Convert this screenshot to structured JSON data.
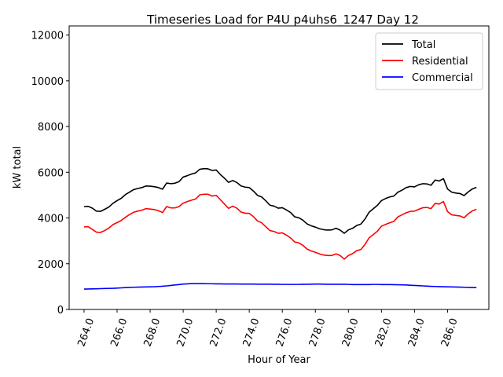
{
  "chart_data": {
    "type": "line",
    "title": "Timeseries Load for P4U p4uhs6_1247  Day 12",
    "xlabel": "Hour of Year",
    "ylabel": "kW total",
    "xlim": [
      263.1,
      288.5
    ],
    "ylim": [
      0,
      12400
    ],
    "x_ticks": [
      264.0,
      266.0,
      268.0,
      270.0,
      272.0,
      274.0,
      276.0,
      278.0,
      280.0,
      282.0,
      284.0,
      286.0
    ],
    "x_tick_labels": [
      "264.0",
      "266.0",
      "268.0",
      "270.0",
      "272.0",
      "274.0",
      "276.0",
      "278.0",
      "280.0",
      "282.0",
      "284.0",
      "286.0"
    ],
    "y_ticks": [
      0,
      2000,
      4000,
      6000,
      8000,
      10000,
      12000
    ],
    "y_tick_labels": [
      "0",
      "2000",
      "4000",
      "6000",
      "8000",
      "10000",
      "12000"
    ],
    "legend_position": "top-right",
    "grid": false,
    "x": [
      264.0,
      264.25,
      264.5,
      264.75,
      265.0,
      265.25,
      265.5,
      265.75,
      266.0,
      266.25,
      266.5,
      266.75,
      267.0,
      267.25,
      267.5,
      267.75,
      268.0,
      268.25,
      268.5,
      268.75,
      269.0,
      269.25,
      269.5,
      269.75,
      270.0,
      270.25,
      270.5,
      270.75,
      271.0,
      271.25,
      271.5,
      271.75,
      272.0,
      272.25,
      272.5,
      272.75,
      273.0,
      273.25,
      273.5,
      273.75,
      274.0,
      274.25,
      274.5,
      274.75,
      275.0,
      275.25,
      275.5,
      275.75,
      276.0,
      276.25,
      276.5,
      276.75,
      277.0,
      277.25,
      277.5,
      277.75,
      278.0,
      278.25,
      278.5,
      278.75,
      279.0,
      279.25,
      279.5,
      279.75,
      280.0,
      280.25,
      280.5,
      280.75,
      281.0,
      281.25,
      281.5,
      281.75,
      282.0,
      282.25,
      282.5,
      282.75,
      283.0,
      283.25,
      283.5,
      283.75,
      284.0,
      284.25,
      284.5,
      284.75,
      285.0,
      285.25,
      285.5,
      285.75,
      286.0,
      286.25,
      286.5,
      286.75,
      287.0,
      287.25,
      287.5,
      287.75
    ],
    "series": [
      {
        "name": "Total",
        "color": "#000000",
        "values": [
          4500,
          4510,
          4430,
          4300,
          4290,
          4380,
          4480,
          4640,
          4760,
          4860,
          5020,
          5130,
          5240,
          5290,
          5330,
          5400,
          5390,
          5370,
          5330,
          5260,
          5530,
          5500,
          5520,
          5590,
          5790,
          5850,
          5920,
          5970,
          6130,
          6160,
          6150,
          6080,
          6100,
          5900,
          5740,
          5560,
          5640,
          5550,
          5400,
          5350,
          5330,
          5180,
          4990,
          4920,
          4750,
          4560,
          4520,
          4430,
          4450,
          4350,
          4240,
          4050,
          4010,
          3900,
          3740,
          3660,
          3600,
          3530,
          3490,
          3470,
          3480,
          3550,
          3470,
          3330,
          3480,
          3550,
          3670,
          3730,
          3950,
          4250,
          4400,
          4550,
          4760,
          4850,
          4920,
          4960,
          5130,
          5220,
          5330,
          5380,
          5360,
          5450,
          5500,
          5490,
          5430,
          5660,
          5620,
          5720,
          5270,
          5130,
          5090,
          5070,
          4980,
          5140,
          5270,
          5340
        ]
      },
      {
        "name": "Residential",
        "color": "#ff0000",
        "values": [
          3610,
          3620,
          3500,
          3380,
          3370,
          3450,
          3560,
          3710,
          3800,
          3890,
          4030,
          4150,
          4250,
          4300,
          4340,
          4410,
          4390,
          4370,
          4320,
          4240,
          4500,
          4440,
          4440,
          4500,
          4650,
          4720,
          4780,
          4830,
          5010,
          5040,
          5040,
          4960,
          4990,
          4800,
          4610,
          4420,
          4520,
          4430,
          4260,
          4210,
          4200,
          4060,
          3870,
          3790,
          3620,
          3450,
          3410,
          3330,
          3350,
          3250,
          3130,
          2950,
          2910,
          2800,
          2640,
          2560,
          2500,
          2430,
          2380,
          2360,
          2360,
          2430,
          2360,
          2200,
          2360,
          2440,
          2570,
          2620,
          2840,
          3130,
          3270,
          3420,
          3640,
          3720,
          3790,
          3850,
          4050,
          4140,
          4230,
          4290,
          4300,
          4380,
          4450,
          4460,
          4410,
          4640,
          4610,
          4720,
          4280,
          4140,
          4110,
          4090,
          4010,
          4180,
          4310,
          4380
        ]
      },
      {
        "name": "Commercial",
        "color": "#0000ff",
        "values": [
          890,
          895,
          900,
          905,
          910,
          915,
          920,
          925,
          935,
          945,
          955,
          965,
          970,
          975,
          980,
          985,
          990,
          995,
          1005,
          1015,
          1030,
          1050,
          1070,
          1090,
          1110,
          1120,
          1130,
          1130,
          1130,
          1130,
          1125,
          1125,
          1120,
          1120,
          1115,
          1115,
          1115,
          1115,
          1110,
          1110,
          1110,
          1110,
          1105,
          1105,
          1105,
          1105,
          1100,
          1100,
          1095,
          1095,
          1095,
          1095,
          1095,
          1100,
          1100,
          1105,
          1110,
          1110,
          1105,
          1100,
          1100,
          1100,
          1100,
          1100,
          1095,
          1090,
          1090,
          1090,
          1090,
          1090,
          1095,
          1095,
          1090,
          1090,
          1090,
          1085,
          1080,
          1075,
          1070,
          1060,
          1050,
          1040,
          1030,
          1020,
          1010,
          1005,
          1000,
          995,
          990,
          985,
          980,
          975,
          970,
          965,
          960,
          955
        ]
      }
    ]
  }
}
